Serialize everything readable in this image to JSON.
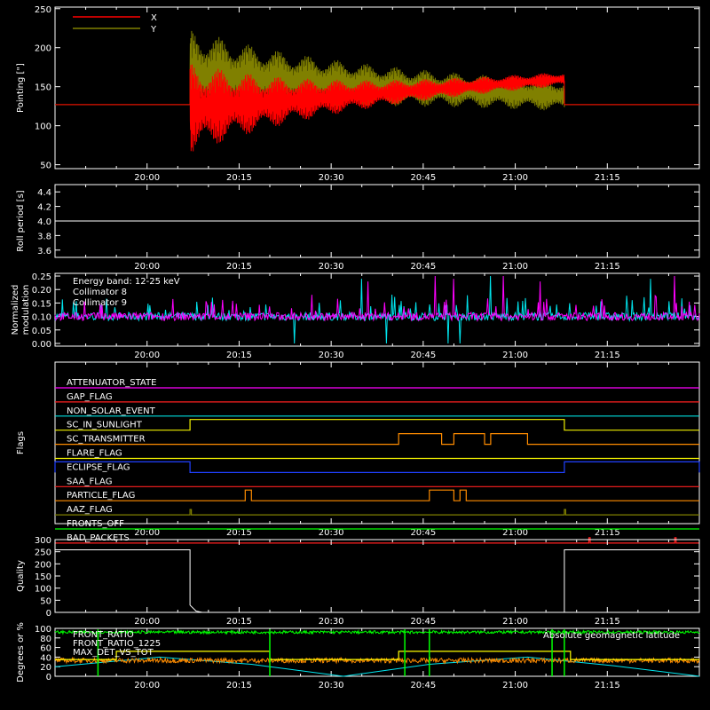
{
  "time_ticks": [
    "20:00",
    "20:15",
    "20:30",
    "20:45",
    "21:00",
    "21:15"
  ],
  "panels": {
    "pointing": {
      "ylabel": "Pointing [\"]",
      "yticks": [
        50,
        100,
        150,
        200,
        250
      ],
      "legend": [
        {
          "label": "X",
          "color": "#ff0000"
        },
        {
          "label": "Y",
          "color": "#808000"
        }
      ]
    },
    "roll": {
      "ylabel": "Roll period [s]",
      "yticks": [
        "3.6",
        "3.8",
        "4.0",
        "4.2",
        "4.4"
      ]
    },
    "modulation": {
      "ylabel_lines": [
        "Normalized",
        "modulation"
      ],
      "yticks": [
        "0.00",
        "0.05",
        "0.10",
        "0.15",
        "0.20",
        "0.25"
      ],
      "legend": [
        {
          "label": "Energy band: 12-25 keV",
          "color": "#ffffff"
        },
        {
          "label": "Collimator 8",
          "color": "#00e5ee"
        },
        {
          "label": "Collimator 9",
          "color": "#ff00ff"
        }
      ]
    },
    "flags": {
      "ylabel": "Flags",
      "rows": [
        {
          "label": "ATTENUATOR_STATE",
          "color": "#ff00ff"
        },
        {
          "label": "GAP_FLAG",
          "color": "#ff2020"
        },
        {
          "label": "NON_SOLAR_EVENT",
          "color": "#00e0e0"
        },
        {
          "label": "SC_IN_SUNLIGHT",
          "color": "#f0f000"
        },
        {
          "label": "SC_TRANSMITTER",
          "color": "#ff8c00"
        },
        {
          "label": "FLARE_FLAG",
          "color": "#ffff00"
        },
        {
          "label": "ECLIPSE_FLAG",
          "color": "#2040ff"
        },
        {
          "label": "SAA_FLAG",
          "color": "#ff2020"
        },
        {
          "label": "PARTICLE_FLAG",
          "color": "#ff8c00"
        },
        {
          "label": "AAZ_FLAG",
          "color": "#808000"
        },
        {
          "label": "FRONTS_OFF",
          "color": "#00ff00"
        },
        {
          "label": "BAD_PACKETS",
          "color": "#ff2020"
        }
      ]
    },
    "quality": {
      "ylabel": "Quality",
      "yticks": [
        0,
        50,
        100,
        150,
        200,
        250,
        300
      ]
    },
    "degrees": {
      "ylabel": "Degrees or %",
      "yticks": [
        0,
        20,
        40,
        60,
        80,
        100
      ],
      "legend": [
        {
          "label": "FRONT_RATIO",
          "color": "#ffff00"
        },
        {
          "label": "FRONT_RATIO_1225",
          "color": "#00ff00"
        },
        {
          "label": "MAX_DET_VS_TOT",
          "color": "#ff8c00"
        }
      ],
      "right_label": {
        "label": "Absolute geomagnetic latitude",
        "color": "#00e5ee"
      }
    }
  },
  "chart_data": [
    {
      "type": "line",
      "ylabel": "Pointing [\"]",
      "x_range": [
        "19:45",
        "21:30"
      ],
      "ylim": [
        45,
        252
      ],
      "series": [
        {
          "name": "X",
          "color": "#ff0000",
          "before": 127,
          "start": "20:07",
          "end": "21:08",
          "center_start": 122,
          "center_end": 160,
          "amp_start": 60,
          "amp_end": 7,
          "after": 127
        },
        {
          "name": "Y",
          "color": "#808000",
          "before": 127,
          "start": "20:07",
          "end": "21:08",
          "center_start": 165,
          "center_end": 138,
          "amp_start": 60,
          "amp_end": 18,
          "after": 127
        }
      ]
    },
    {
      "type": "line",
      "ylabel": "Roll period [s]",
      "ylim": [
        3.5,
        4.5
      ],
      "series": [
        {
          "color": "#ffffff",
          "value": 4.0
        }
      ]
    },
    {
      "type": "line",
      "ylabel": "Normalized modulation",
      "ylim": [
        -0.01,
        0.26
      ],
      "series": [
        {
          "name": "Collimator 8",
          "color": "#00e5ee",
          "baseline": 0.1,
          "spikes": [
            [
              "20:24",
              0.0
            ],
            [
              "20:39",
              0.0
            ],
            [
              "20:49",
              0.0
            ],
            [
              "20:51",
              0.0
            ],
            [
              "20:35",
              0.24
            ],
            [
              "20:56",
              0.25
            ],
            [
              "21:22",
              0.24
            ]
          ]
        },
        {
          "name": "Collimator 9",
          "color": "#ff00ff",
          "baseline": 0.1,
          "spikes": [
            [
              "20:36",
              0.23
            ],
            [
              "20:47",
              0.25
            ],
            [
              "20:50",
              0.24
            ],
            [
              "20:58",
              0.25
            ],
            [
              "21:04",
              0.23
            ],
            [
              "21:26",
              0.25
            ]
          ]
        }
      ]
    },
    {
      "type": "line",
      "ylabel": "Flags",
      "series": [
        {
          "name": "SC_IN_SUNLIGHT",
          "high_intervals": [
            [
              "20:07",
              "21:08"
            ]
          ]
        },
        {
          "name": "SC_TRANSMITTER",
          "high_intervals": [
            [
              "20:41",
              "20:48"
            ],
            [
              "20:50",
              "20:55"
            ],
            [
              "20:56",
              "21:02"
            ]
          ]
        },
        {
          "name": "ECLIPSE_FLAG",
          "high_intervals": [
            [
              "19:45",
              "20:07"
            ],
            [
              "21:08",
              "21:30"
            ]
          ]
        },
        {
          "name": "PARTICLE_FLAG",
          "high_intervals": [
            [
              "20:16",
              "20:17"
            ],
            [
              "20:46",
              "20:50"
            ],
            [
              "20:51",
              "20:52"
            ]
          ]
        },
        {
          "name": "AAZ_FLAG",
          "high_intervals": [
            [
              "20:07",
              "20:07"
            ],
            [
              "21:08",
              "21:08"
            ]
          ]
        },
        {
          "name": "BAD_PACKETS",
          "high_intervals": [
            [
              "21:12",
              "21:12"
            ],
            [
              "21:26",
              "21:26"
            ]
          ]
        }
      ]
    },
    {
      "type": "line",
      "ylabel": "Quality",
      "ylim": [
        0,
        300
      ],
      "series": [
        {
          "color": "#ffffff",
          "points": [
            [
              "19:45",
              258
            ],
            [
              "20:07",
              258
            ],
            [
              "20:07",
              30
            ],
            [
              "20:08",
              5
            ],
            [
              "20:09",
              0
            ],
            [
              "21:08",
              0
            ],
            [
              "21:08",
              258
            ],
            [
              "21:30",
              258
            ]
          ]
        }
      ]
    },
    {
      "type": "line",
      "ylabel": "Degrees or %",
      "ylim": [
        0,
        100
      ],
      "series": [
        {
          "name": "FRONT_RATIO",
          "color": "#ffff00",
          "segments": [
            [
              "19:55",
              "20:20",
              52
            ],
            [
              "20:41",
              "21:09",
              52
            ]
          ],
          "level": 35
        },
        {
          "name": "FRONT_RATIO_1225",
          "color": "#00ff00",
          "high_level": 98,
          "dropouts": [
            "19:52",
            "20:20",
            "20:42",
            "20:46",
            "21:06",
            "21:08"
          ]
        },
        {
          "name": "MAX_DET_VS_TOT",
          "color": "#ff8c00",
          "level": 33
        },
        {
          "name": "Absolute geomagnetic latitude",
          "color": "#00e5ee",
          "points": [
            [
              "19:45",
              20
            ],
            [
              "20:02",
              40
            ],
            [
              "20:17",
              25
            ],
            [
              "20:32",
              0
            ],
            [
              "20:46",
              25
            ],
            [
              "21:02",
              40
            ],
            [
              "21:16",
              22
            ],
            [
              "21:30",
              0
            ]
          ]
        }
      ]
    }
  ]
}
